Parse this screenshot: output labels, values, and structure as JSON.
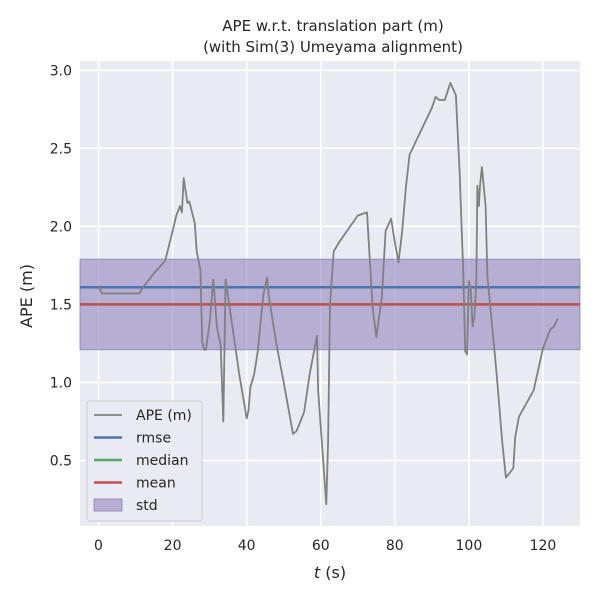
{
  "chart_data": {
    "type": "line",
    "title": "APE w.r.t. translation part (m)",
    "subtitle": "(with Sim(3) Umeyama alignment)",
    "xlabel_var": "t",
    "xlabel_unit": " (s)",
    "ylabel": "APE (m)",
    "xlim": [
      -5,
      130
    ],
    "ylim": [
      0.08,
      3.06
    ],
    "xticks": [
      0,
      20,
      40,
      60,
      80,
      100,
      120
    ],
    "yticks": [
      0.5,
      1.0,
      1.5,
      2.0,
      2.5,
      3.0
    ],
    "ytick_labels": [
      "0.5",
      "1.0",
      "1.5",
      "2.0",
      "2.5",
      "3.0"
    ],
    "grid": true,
    "legend_placement": "lower-left",
    "stats": {
      "rmse": 1.61,
      "median": 1.5,
      "mean": 1.5,
      "std": 0.29
    },
    "std_band": [
      1.21,
      1.79
    ],
    "legend": [
      {
        "label": "APE (m)",
        "kind": "line",
        "color": "#808080"
      },
      {
        "label": "rmse",
        "kind": "line",
        "color": "#4c72b0"
      },
      {
        "label": "median",
        "kind": "line",
        "color": "#55a868"
      },
      {
        "label": "mean",
        "kind": "line",
        "color": "#c44e52"
      },
      {
        "label": "std",
        "kind": "patch",
        "color": "#8172b3"
      }
    ],
    "series": [
      {
        "name": "APE (m)",
        "color": "#808080",
        "points": [
          [
            0,
            1.62
          ],
          [
            0.5,
            1.59
          ],
          [
            1,
            1.57
          ],
          [
            5,
            1.57
          ],
          [
            11,
            1.57
          ],
          [
            12,
            1.61
          ],
          [
            15,
            1.7
          ],
          [
            18,
            1.78
          ],
          [
            20,
            1.97
          ],
          [
            21,
            2.07
          ],
          [
            22,
            2.13
          ],
          [
            22.5,
            2.09
          ],
          [
            23,
            2.31
          ],
          [
            24,
            2.15
          ],
          [
            24.5,
            2.16
          ],
          [
            26,
            2.02
          ],
          [
            26.5,
            1.84
          ],
          [
            27.5,
            1.72
          ],
          [
            28,
            1.26
          ],
          [
            28.5,
            1.21
          ],
          [
            29,
            1.21
          ],
          [
            30,
            1.38
          ],
          [
            31,
            1.66
          ],
          [
            32,
            1.35
          ],
          [
            33,
            1.24
          ],
          [
            33.7,
            0.75
          ],
          [
            34.3,
            1.66
          ],
          [
            35,
            1.55
          ],
          [
            38,
            1.05
          ],
          [
            40,
            0.77
          ],
          [
            40.5,
            0.82
          ],
          [
            41,
            0.97
          ],
          [
            42,
            1.05
          ],
          [
            43,
            1.2
          ],
          [
            44.5,
            1.56
          ],
          [
            45.5,
            1.67
          ],
          [
            46,
            1.55
          ],
          [
            48,
            1.25
          ],
          [
            50,
            1.0
          ],
          [
            52.5,
            0.67
          ],
          [
            53.5,
            0.69
          ],
          [
            55.5,
            0.81
          ],
          [
            57,
            1.05
          ],
          [
            59,
            1.3
          ],
          [
            59.3,
            0.95
          ],
          [
            60.5,
            0.55
          ],
          [
            61.5,
            0.22
          ],
          [
            62,
            0.62
          ],
          [
            62.5,
            1.5
          ],
          [
            63.5,
            1.84
          ],
          [
            65,
            1.9
          ],
          [
            70,
            2.07
          ],
          [
            72.5,
            2.09
          ],
          [
            74,
            1.48
          ],
          [
            75,
            1.29
          ],
          [
            76.5,
            1.55
          ],
          [
            77.5,
            1.97
          ],
          [
            79,
            2.05
          ],
          [
            80,
            1.9
          ],
          [
            81,
            1.77
          ],
          [
            82,
            1.97
          ],
          [
            83,
            2.25
          ],
          [
            84,
            2.46
          ],
          [
            86,
            2.56
          ],
          [
            90,
            2.76
          ],
          [
            91,
            2.83
          ],
          [
            92,
            2.81
          ],
          [
            93.5,
            2.81
          ],
          [
            95,
            2.92
          ],
          [
            96.5,
            2.84
          ],
          [
            97.5,
            2.35
          ],
          [
            98.5,
            1.7
          ],
          [
            99,
            1.2
          ],
          [
            99.5,
            1.18
          ],
          [
            100,
            1.65
          ],
          [
            100.5,
            1.6
          ],
          [
            101,
            1.36
          ],
          [
            101.5,
            1.42
          ],
          [
            102,
            1.64
          ],
          [
            102.3,
            2.26
          ],
          [
            102.7,
            2.13
          ],
          [
            103,
            2.26
          ],
          [
            103.5,
            2.38
          ],
          [
            104.5,
            2.13
          ],
          [
            105,
            1.68
          ],
          [
            106,
            1.43
          ],
          [
            107.5,
            1.05
          ],
          [
            109,
            0.62
          ],
          [
            110,
            0.39
          ],
          [
            112,
            0.45
          ],
          [
            112.5,
            0.65
          ],
          [
            113.5,
            0.78
          ],
          [
            117.5,
            0.95
          ],
          [
            120,
            1.22
          ],
          [
            122,
            1.34
          ],
          [
            123,
            1.36
          ],
          [
            124,
            1.41
          ]
        ]
      }
    ]
  }
}
